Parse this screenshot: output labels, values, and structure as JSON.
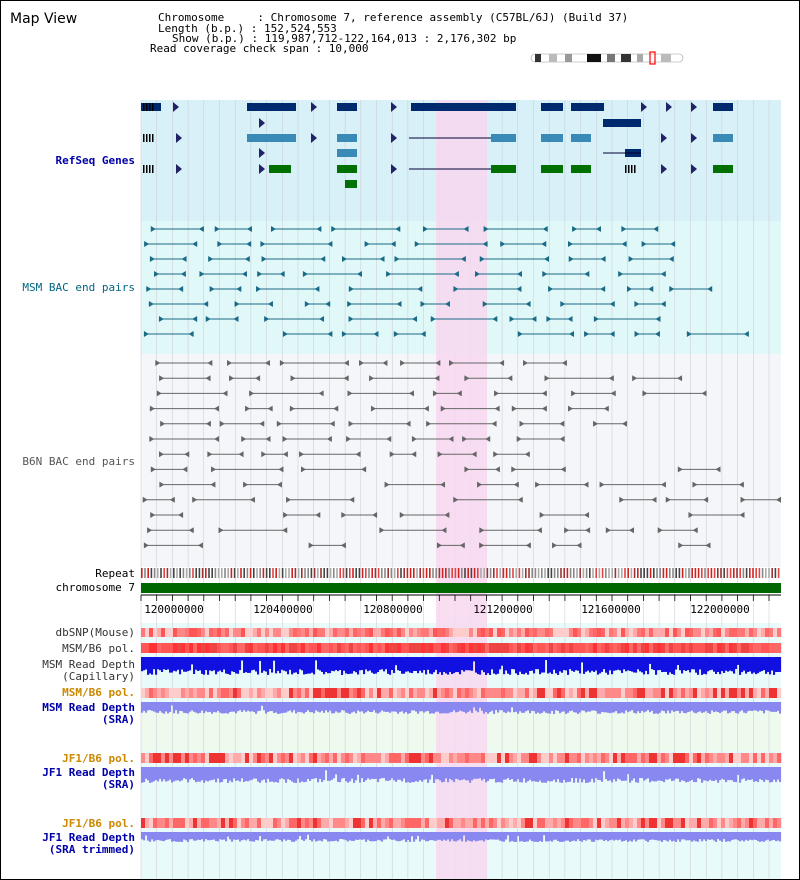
{
  "header": {
    "view_title": "Map View",
    "info_lines": [
      "Chromosome     : Chromosome 7, reference assembly (C57BL/6J) (Build 37)",
      "Length (b.p.) : 152,524,553",
      "Show (b.p.) : 119,987,712-122,164,013 : 2,176,302 bp",
      "Read coverage check span : 10,000"
    ]
  },
  "tracks": {
    "refseq": {
      "label": "RefSeq Genes",
      "color": "#0000aa"
    },
    "msm_bac": {
      "label": "MSM BAC end pairs",
      "color": "#006680"
    },
    "b6n_bac": {
      "label": "B6N BAC end pairs",
      "color": "#555555"
    },
    "repeat": {
      "label": "Repeat",
      "color": "#000000"
    },
    "chromosome": {
      "label": "chromosome 7",
      "color": "#000000"
    },
    "dbsnp": {
      "label": "dbSNP(Mouse)",
      "color": "#333333"
    },
    "msm_b6_pol_1": {
      "label": "MSM/B6 pol.",
      "color": "#333333"
    },
    "msm_depth_cap": {
      "label_line1": "MSM Read Depth",
      "label_line2": "(Capillary)",
      "color": "#333333"
    },
    "msm_b6_pol_2": {
      "label": "MSM/B6 pol.",
      "color": "#cc8800"
    },
    "msm_depth_sra": {
      "label_line1": "MSM Read Depth",
      "label_line2": "(SRA)",
      "color": "#0000aa"
    },
    "jf1_b6_pol_1": {
      "label": "JF1/B6 pol.",
      "color": "#cc8800"
    },
    "jf1_depth_sra": {
      "label_line1": "JF1 Read Depth",
      "label_line2": "(SRA)",
      "color": "#0000aa"
    },
    "jf1_b6_pol_2": {
      "label": "JF1/B6 pol.",
      "color": "#cc8800"
    },
    "jf1_depth_trim": {
      "label_line1": "JF1 Read Depth",
      "label_line2": "(SRA trimmed)",
      "color": "#0000aa"
    }
  },
  "axis": {
    "ticks": [
      "120000000",
      "120400000",
      "120800000",
      "121200000",
      "121600000",
      "122000000"
    ]
  },
  "colors": {
    "refseq_bg": "#d8f0f8",
    "msm_bg": "#e0f8f8",
    "b6n_bg": "#f4f6fa",
    "highlight": "#f8d8f0",
    "chromosome_bar": "#006600",
    "gene_dark": "#002a6e",
    "gene_mid": "#3a8ab8",
    "gene_green": "#007000",
    "depth_dark": "#1010e0",
    "depth_light": "#8888f0"
  }
}
